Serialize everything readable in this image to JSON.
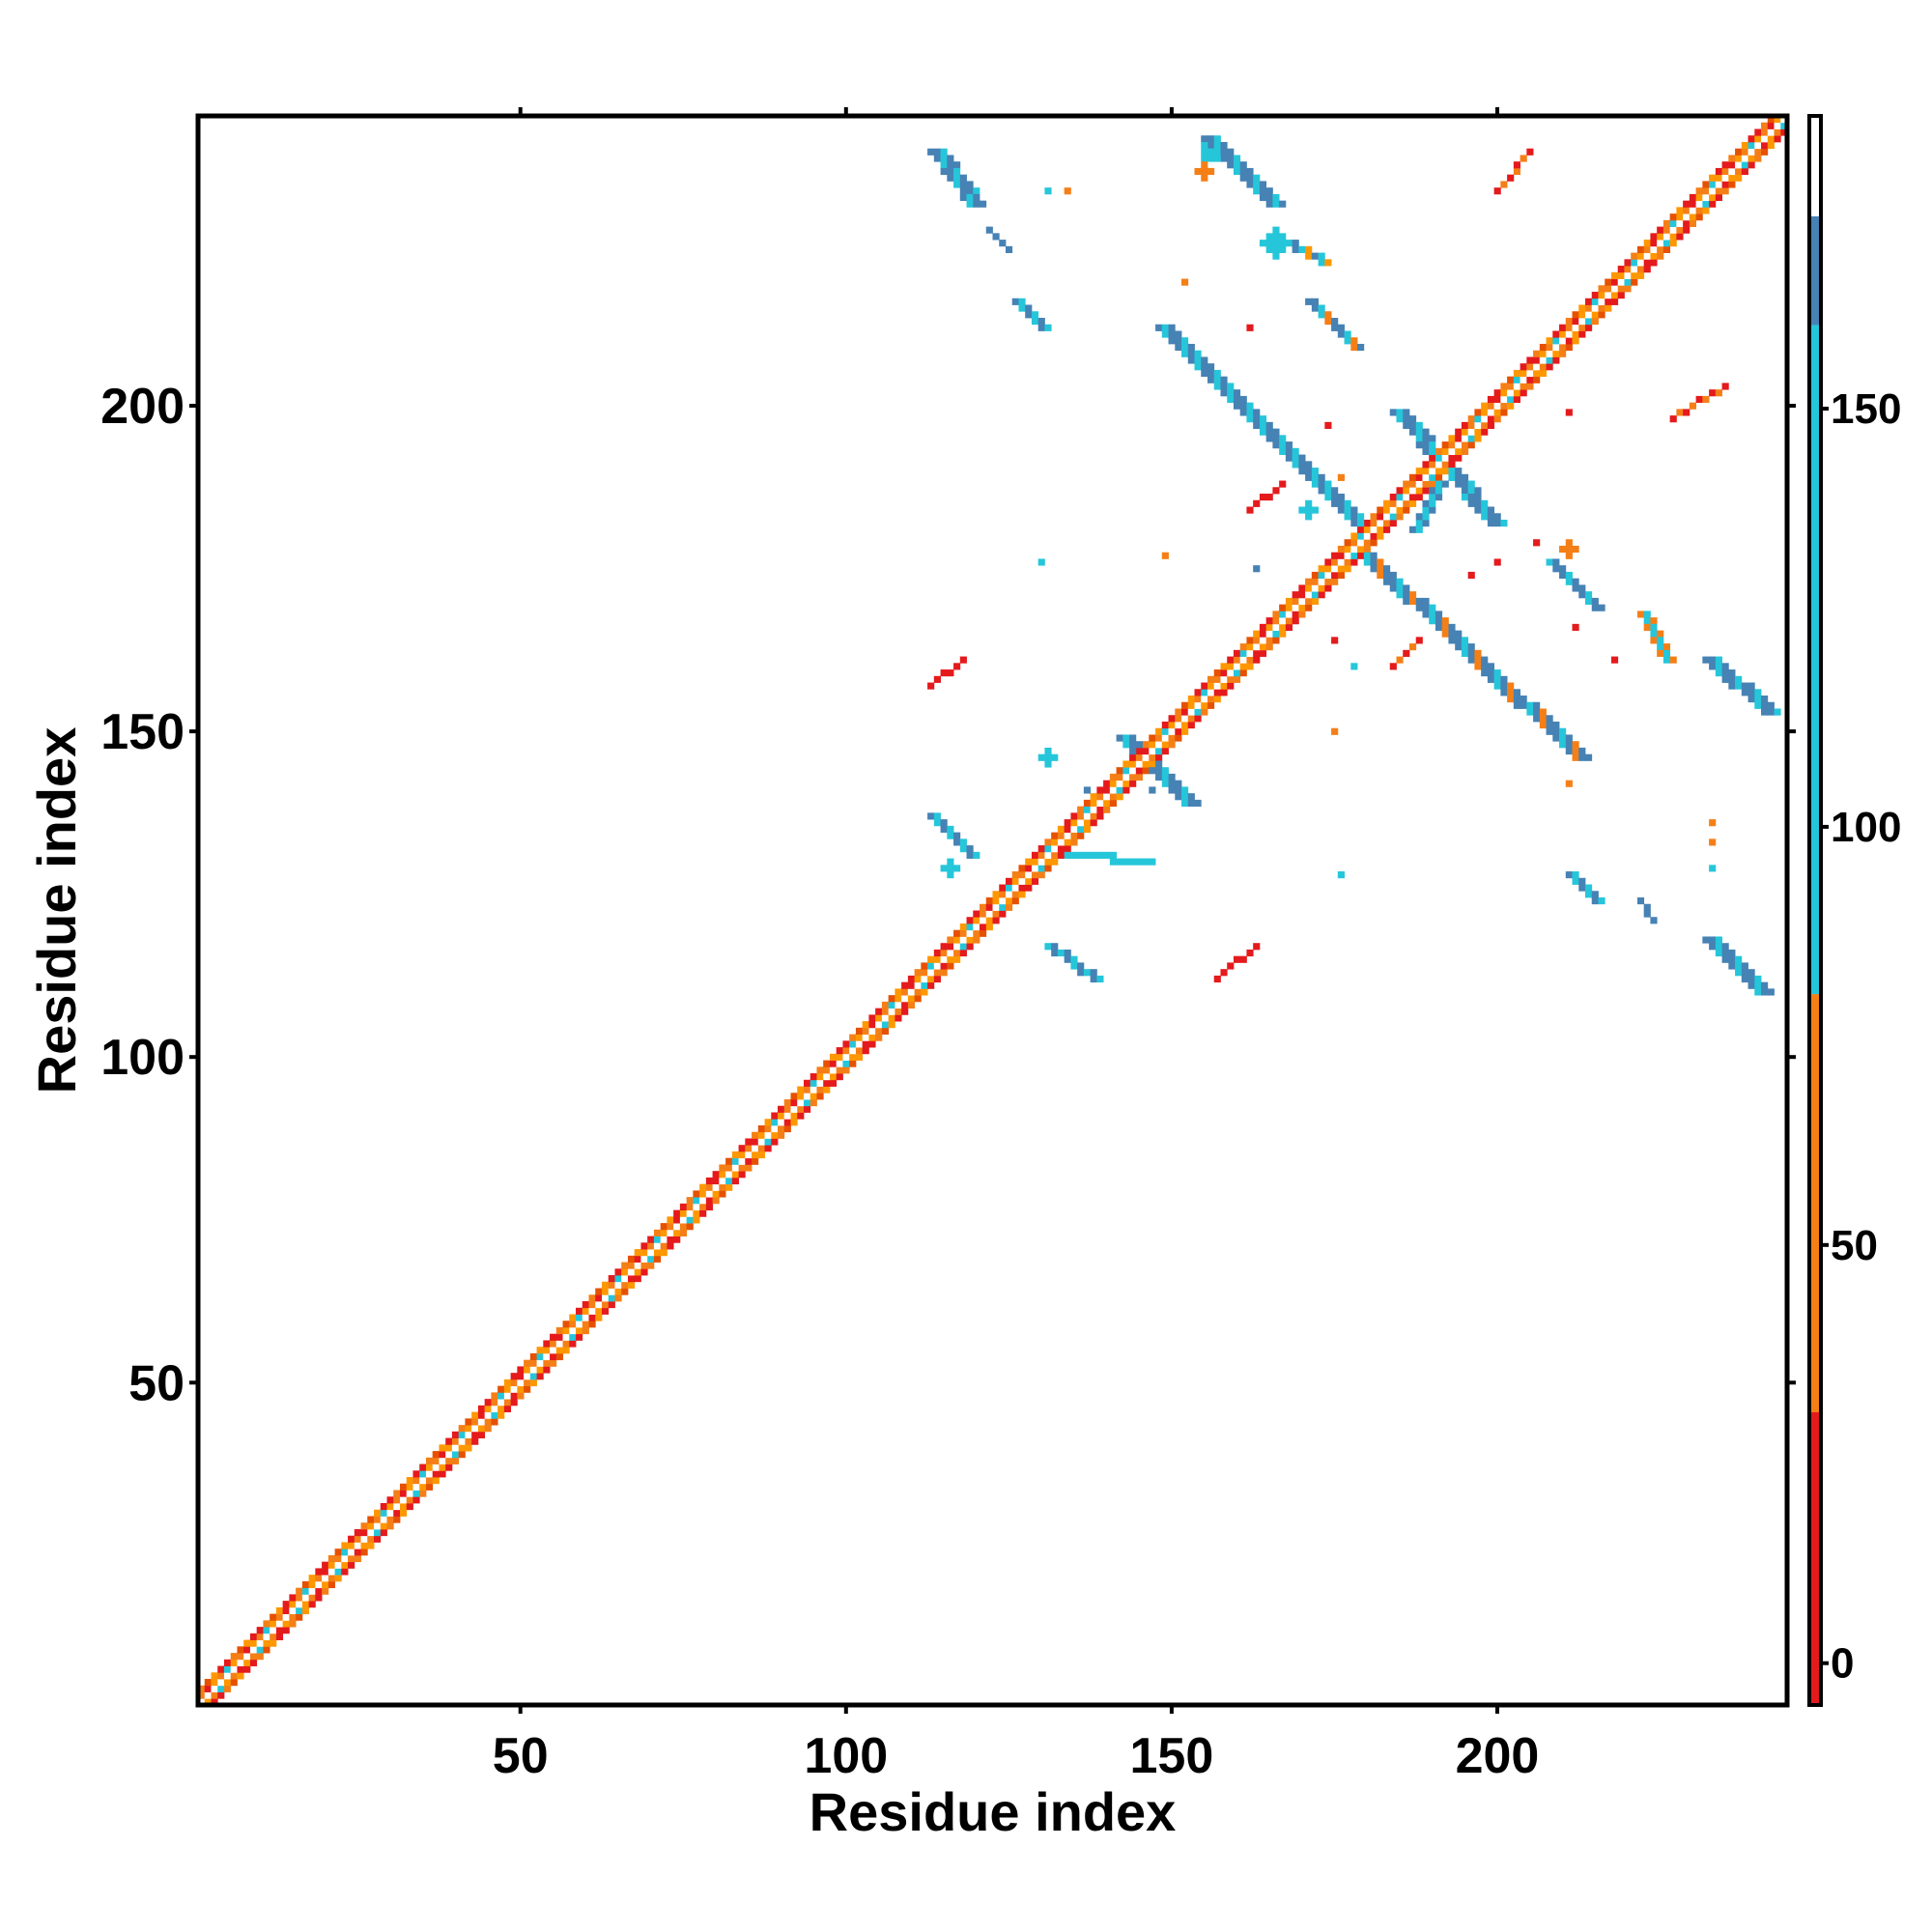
{
  "chart_data": {
    "type": "heatmap",
    "title": "",
    "xlabel": "Residue index",
    "ylabel": "Residue index",
    "xlim": [
      1,
      244
    ],
    "ylim": [
      1,
      244
    ],
    "x_ticks": [
      50,
      100,
      150,
      200
    ],
    "y_ticks": [
      50,
      100,
      150,
      200
    ],
    "grid": false,
    "colorbar": {
      "ticks": [
        0,
        50,
        100,
        150
      ],
      "range": [
        -5,
        185
      ],
      "bands": [
        {
          "from": -5,
          "to": 30,
          "color": "#e41a1c"
        },
        {
          "from": 30,
          "to": 80,
          "color": "#f57f17"
        },
        {
          "from": 80,
          "to": 160,
          "color": "#26c6da"
        },
        {
          "from": 160,
          "to": 173,
          "color": "#4682b4"
        },
        {
          "from": 173,
          "to": 185,
          "color": "#ffffff"
        }
      ]
    },
    "diagonal": {
      "from": 1,
      "to": 244,
      "core_color": "#ffffff",
      "inner_colors": [
        "#ff9800",
        "#f57f17",
        "#e41a1c",
        "#ff9800",
        "#f57f17",
        "#26c6da"
      ],
      "outer_colors": [
        "#e41a1c",
        "#f57f17",
        "#e65100",
        "#ff9800",
        "#e41a1c"
      ]
    },
    "features": [
      {
        "type": "line",
        "x": [
          113,
          119
        ],
        "y": [
          239,
          231
        ],
        "width": 3,
        "colors": [
          "#4682b4",
          "#4682b4",
          "#26c6da"
        ]
      },
      {
        "type": "line",
        "x": [
          155,
          165
        ],
        "y": [
          241,
          231
        ],
        "width": 3,
        "colors": [
          "#4682b4",
          "#4682b4",
          "#26c6da"
        ]
      },
      {
        "type": "blob",
        "x": 156,
        "y": 239,
        "r": 1.5,
        "color": "#26c6da"
      },
      {
        "type": "blob",
        "x": 155,
        "y": 236,
        "r": 1,
        "color": "#f57f17"
      },
      {
        "type": "blob",
        "x": 131,
        "y": 233,
        "r": 0.6,
        "color": "#26c6da"
      },
      {
        "type": "blob",
        "x": 134,
        "y": 233,
        "r": 0.6,
        "color": "#f57f17"
      },
      {
        "type": "line",
        "x": [
          200,
          205
        ],
        "y": [
          233,
          239
        ],
        "width": 1,
        "colors": [
          "#e41a1c",
          "#f57f17"
        ]
      },
      {
        "type": "line",
        "x": [
          122,
          125
        ],
        "y": [
          227,
          224
        ],
        "width": 1,
        "colors": [
          "#4682b4"
        ]
      },
      {
        "type": "blob",
        "x": 166,
        "y": 225,
        "r": 2,
        "color": "#26c6da"
      },
      {
        "type": "line",
        "x": [
          166,
          173
        ],
        "y": [
          226,
          222
        ],
        "width": 2,
        "colors": [
          "#4682b4",
          "#26c6da",
          "#ff9800"
        ]
      },
      {
        "type": "line",
        "x": [
          126,
          130
        ],
        "y": [
          216,
          212
        ],
        "width": 2,
        "colors": [
          "#4682b4",
          "#26c6da"
        ]
      },
      {
        "type": "line",
        "x": [
          171,
          178
        ],
        "y": [
          216,
          209
        ],
        "width": 2,
        "colors": [
          "#4682b4",
          "#4682b4",
          "#26c6da",
          "#f57f17"
        ]
      },
      {
        "type": "line",
        "x": [
          148,
          178
        ],
        "y": [
          212,
          182
        ],
        "width": 3,
        "colors": [
          "#4682b4",
          "#26c6da",
          "#4682b4",
          "#4682b4",
          "#26c6da"
        ]
      },
      {
        "type": "line",
        "x": [
          178,
          212
        ],
        "y": [
          178,
          146
        ],
        "width": 3,
        "colors": [
          "#4682b4",
          "#4682b4",
          "#26c6da",
          "#4682b4",
          "#f57f17"
        ]
      },
      {
        "type": "line",
        "x": [
          184,
          199
        ],
        "y": [
          199,
          182
        ],
        "width": 3,
        "colors": [
          "#4682b4",
          "#26c6da",
          "#4682b4"
        ]
      },
      {
        "type": "line",
        "x": [
          162,
          167
        ],
        "y": [
          184,
          188
        ],
        "width": 1,
        "colors": [
          "#e41a1c"
        ]
      },
      {
        "type": "blob",
        "x": 171,
        "y": 184,
        "r": 1,
        "color": "#26c6da"
      },
      {
        "type": "line",
        "x": [
          227,
          235
        ],
        "y": [
          198,
          203
        ],
        "width": 1,
        "colors": [
          "#e41a1c",
          "#f57f17"
        ]
      },
      {
        "type": "line",
        "x": [
          208,
          215
        ],
        "y": [
          176,
          169
        ],
        "width": 2,
        "colors": [
          "#26c6da",
          "#4682b4",
          "#4682b4"
        ]
      },
      {
        "type": "blob",
        "x": 211,
        "y": 178,
        "r": 1,
        "color": "#f57f17"
      },
      {
        "type": "line",
        "x": [
          222,
          226
        ],
        "y": [
          168,
          161
        ],
        "width": 2,
        "colors": [
          "#f57f17",
          "#26c6da"
        ]
      },
      {
        "type": "line",
        "x": [
          232,
          241
        ],
        "y": [
          161,
          153
        ],
        "width": 3,
        "colors": [
          "#4682b4",
          "#4682b4",
          "#26c6da"
        ]
      },
      {
        "type": "line",
        "x": [
          113,
          118
        ],
        "y": [
          157,
          161
        ],
        "width": 1,
        "colors": [
          "#e41a1c"
        ]
      },
      {
        "type": "line",
        "x": [
          184,
          188
        ],
        "y": [
          160,
          164
        ],
        "width": 1,
        "colors": [
          "#e41a1c",
          "#f57f17"
        ]
      },
      {
        "type": "blob",
        "x": 131,
        "y": 146,
        "r": 1.2,
        "color": "#26c6da"
      },
      {
        "type": "line",
        "x": [
          142,
          152
        ],
        "y": [
          149,
          139
        ],
        "width": 3,
        "colors": [
          "#4682b4",
          "#26c6da",
          "#4682b4"
        ]
      },
      {
        "type": "line",
        "x": [
          113,
          119
        ],
        "y": [
          137,
          131
        ],
        "width": 2,
        "colors": [
          "#4682b4",
          "#26c6da"
        ]
      },
      {
        "type": "blob",
        "x": 116,
        "y": 129,
        "r": 1,
        "color": "#26c6da"
      },
      {
        "type": "line",
        "x": [
          134,
          146
        ],
        "y": [
          131,
          130
        ],
        "width": 2,
        "colors": [
          "#26c6da"
        ]
      },
      {
        "type": "line",
        "x": [
          211,
          215
        ],
        "y": [
          128,
          124
        ],
        "width": 2,
        "colors": [
          "#4682b4",
          "#26c6da"
        ]
      },
      {
        "type": "line",
        "x": [
          222,
          224
        ],
        "y": [
          124,
          121
        ],
        "width": 1,
        "colors": [
          "#4682b4"
        ]
      },
      {
        "type": "line",
        "x": [
          131,
          138
        ],
        "y": [
          117,
          112
        ],
        "width": 2,
        "colors": [
          "#26c6da",
          "#4682b4"
        ]
      },
      {
        "type": "line",
        "x": [
          157,
          163
        ],
        "y": [
          112,
          117
        ],
        "width": 1,
        "colors": [
          "#e41a1c"
        ]
      },
      {
        "type": "line",
        "x": [
          232,
          240
        ],
        "y": [
          118,
          110
        ],
        "width": 3,
        "colors": [
          "#4682b4",
          "#4682b4",
          "#26c6da"
        ]
      },
      {
        "type": "line",
        "x": [
          187,
          191
        ],
        "y": [
          181,
          188
        ],
        "width": 2,
        "colors": [
          "#4682b4",
          "#26c6da"
        ]
      }
    ],
    "specks": [
      [
        152,
        219,
        "#f57f17"
      ],
      [
        162,
        212,
        "#e41a1c"
      ],
      [
        174,
        197,
        "#e41a1c"
      ],
      [
        130,
        176,
        "#26c6da"
      ],
      [
        149,
        177,
        "#f57f17"
      ],
      [
        163,
        175,
        "#4682b4"
      ],
      [
        196,
        174,
        "#e41a1c"
      ],
      [
        200,
        176,
        "#e41a1c"
      ],
      [
        212,
        166,
        "#e41a1c"
      ],
      [
        175,
        164,
        "#e41a1c"
      ],
      [
        178,
        160,
        "#26c6da"
      ],
      [
        218,
        161,
        "#e41a1c"
      ],
      [
        175,
        150,
        "#f57f17"
      ],
      [
        147,
        141,
        "#4682b4"
      ],
      [
        211,
        142,
        "#f57f17"
      ],
      [
        137,
        141,
        "#4682b4"
      ],
      [
        176,
        128,
        "#26c6da"
      ],
      [
        233,
        133,
        "#f57f17"
      ],
      [
        233,
        129,
        "#26c6da"
      ],
      [
        233,
        136,
        "#f57f17"
      ],
      [
        206,
        179,
        "#e41a1c"
      ],
      [
        176,
        189,
        "#f57f17"
      ],
      [
        211,
        199,
        "#e41a1c"
      ]
    ]
  }
}
